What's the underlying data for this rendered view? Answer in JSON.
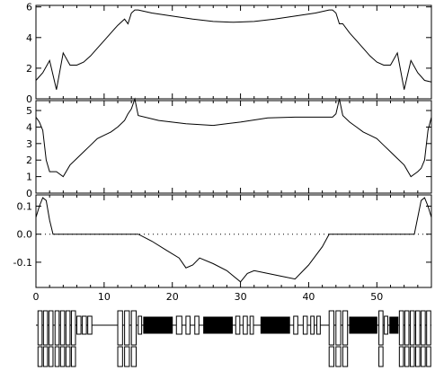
{
  "chart_data": [
    {
      "type": "line",
      "panel": "top",
      "xlabel": "",
      "ylabel": "",
      "title": "",
      "xlim": [
        0,
        58
      ],
      "ylim": [
        0,
        6.1
      ],
      "yticks": [
        0,
        2,
        4,
        6
      ],
      "series": [
        {
          "x": [
            0,
            1,
            2,
            3,
            4,
            5,
            6,
            7,
            8,
            9,
            10,
            11,
            12,
            13,
            13.5,
            14,
            14.5,
            15,
            17,
            20,
            23,
            26,
            29,
            32,
            35,
            38,
            41,
            43,
            43.5,
            44,
            44.5,
            45,
            46,
            47,
            48,
            49,
            50,
            51,
            52,
            53,
            54,
            55,
            56,
            57,
            58
          ],
          "y": [
            1.2,
            1.7,
            2.5,
            0.6,
            3.0,
            2.2,
            2.2,
            2.4,
            2.8,
            3.3,
            3.8,
            4.3,
            4.8,
            5.2,
            4.9,
            5.6,
            5.8,
            5.8,
            5.6,
            5.4,
            5.2,
            5.05,
            5.0,
            5.05,
            5.2,
            5.4,
            5.6,
            5.8,
            5.8,
            5.6,
            4.9,
            4.9,
            4.3,
            3.8,
            3.3,
            2.8,
            2.4,
            2.2,
            2.2,
            3.0,
            0.6,
            2.5,
            1.7,
            1.2,
            1.1
          ]
        }
      ]
    },
    {
      "type": "line",
      "panel": "middle",
      "xlabel": "",
      "ylabel": "",
      "title": "",
      "xlim": [
        0,
        58
      ],
      "ylim": [
        0,
        5.6
      ],
      "yticks": [
        0,
        1,
        2,
        3,
        4,
        5
      ],
      "series": [
        {
          "x": [
            0,
            0.5,
            1,
            1.5,
            2,
            3,
            4,
            5,
            6,
            7,
            8,
            9,
            10,
            11,
            12,
            13,
            13.5,
            14,
            14.5,
            15,
            18,
            22,
            26,
            30,
            34,
            38,
            42,
            43.5,
            44,
            44.5,
            45,
            46,
            47,
            48,
            49,
            50,
            51,
            52,
            53,
            54,
            55,
            56,
            56.5,
            57,
            57.5,
            58
          ],
          "y": [
            4.6,
            4.3,
            3.8,
            2.0,
            1.3,
            1.3,
            1.0,
            1.7,
            2.1,
            2.5,
            2.9,
            3.3,
            3.5,
            3.7,
            4.0,
            4.4,
            4.8,
            5.1,
            5.7,
            4.7,
            4.4,
            4.2,
            4.1,
            4.3,
            4.55,
            4.6,
            4.6,
            4.6,
            4.8,
            5.7,
            4.7,
            4.3,
            4.0,
            3.7,
            3.5,
            3.3,
            2.9,
            2.5,
            2.1,
            1.7,
            1.0,
            1.3,
            1.5,
            2.0,
            3.8,
            4.6
          ]
        }
      ]
    },
    {
      "type": "line",
      "panel": "bottom",
      "xlabel": "",
      "ylabel": "",
      "title": "",
      "xlim": [
        0,
        58
      ],
      "ylim": [
        -0.19,
        0.14
      ],
      "yticks": [
        -0.1,
        0.0,
        0.1
      ],
      "ytick_labels": [
        "-0.1",
        "0.0",
        "0.1"
      ],
      "xticks": [
        0,
        10,
        20,
        30,
        40,
        50
      ],
      "xtick_labels": [
        "0",
        "10",
        "20",
        "30",
        "40",
        "50"
      ],
      "zero_line": "dotted",
      "series": [
        {
          "x": [
            0,
            0.5,
            1,
            1.5,
            2,
            2.5,
            3,
            14,
            15,
            17,
            19,
            21,
            22,
            23,
            24,
            26,
            28,
            30,
            31,
            32,
            34,
            36,
            38,
            40,
            42,
            43,
            44,
            55,
            55.5,
            56,
            56.5,
            57,
            57.5,
            58
          ],
          "y": [
            0.06,
            0.1,
            0.13,
            0.12,
            0.05,
            0.0,
            0.0,
            0.0,
            0.0,
            -0.025,
            -0.055,
            -0.085,
            -0.12,
            -0.11,
            -0.085,
            -0.105,
            -0.13,
            -0.17,
            -0.14,
            -0.13,
            -0.14,
            -0.15,
            -0.16,
            -0.11,
            -0.045,
            0.0,
            0.0,
            0.0,
            0.0,
            0.06,
            0.12,
            0.13,
            0.1,
            0.06
          ]
        }
      ]
    }
  ],
  "lattice": {
    "boxes": [
      {
        "s": 0.3,
        "w": 0.6,
        "h": "tall",
        "fill": "white"
      },
      {
        "s": 1.1,
        "w": 0.6,
        "h": "tall",
        "fill": "white"
      },
      {
        "s": 1.9,
        "w": 0.6,
        "h": "tall",
        "fill": "white"
      },
      {
        "s": 2.8,
        "w": 0.6,
        "h": "tall",
        "fill": "white"
      },
      {
        "s": 3.6,
        "w": 0.6,
        "h": "tall",
        "fill": "white"
      },
      {
        "s": 4.4,
        "w": 0.6,
        "h": "tall",
        "fill": "white"
      },
      {
        "s": 5.2,
        "w": 0.6,
        "h": "tall",
        "fill": "white"
      },
      {
        "s": 6.0,
        "w": 0.6,
        "h": "short",
        "fill": "white"
      },
      {
        "s": 6.8,
        "w": 0.6,
        "h": "short",
        "fill": "white"
      },
      {
        "s": 7.6,
        "w": 0.6,
        "h": "short",
        "fill": "white"
      },
      {
        "s": 12.0,
        "w": 0.7,
        "h": "tall",
        "fill": "white"
      },
      {
        "s": 13.0,
        "w": 0.7,
        "h": "tall",
        "fill": "white"
      },
      {
        "s": 14.0,
        "w": 0.7,
        "h": "tall",
        "fill": "white"
      },
      {
        "s": 15.0,
        "w": 0.5,
        "h": "short",
        "fill": "white"
      },
      {
        "s": 15.8,
        "w": 4.2,
        "h": "mid",
        "fill": "black"
      },
      {
        "s": 20.6,
        "w": 0.8,
        "h": "short",
        "fill": "white"
      },
      {
        "s": 22.0,
        "w": 0.6,
        "h": "short",
        "fill": "white"
      },
      {
        "s": 23.3,
        "w": 0.6,
        "h": "short",
        "fill": "white"
      },
      {
        "s": 24.6,
        "w": 4.2,
        "h": "mid",
        "fill": "black"
      },
      {
        "s": 29.3,
        "w": 0.6,
        "h": "short",
        "fill": "white"
      },
      {
        "s": 30.4,
        "w": 0.6,
        "h": "short",
        "fill": "white"
      },
      {
        "s": 31.4,
        "w": 0.5,
        "h": "short",
        "fill": "white"
      },
      {
        "s": 33.0,
        "w": 4.2,
        "h": "mid",
        "fill": "black"
      },
      {
        "s": 37.8,
        "w": 0.6,
        "h": "short",
        "fill": "white"
      },
      {
        "s": 39.2,
        "w": 0.6,
        "h": "short",
        "fill": "white"
      },
      {
        "s": 40.3,
        "w": 0.5,
        "h": "short",
        "fill": "white"
      },
      {
        "s": 41.2,
        "w": 0.5,
        "h": "short",
        "fill": "white"
      },
      {
        "s": 43.0,
        "w": 0.7,
        "h": "tall",
        "fill": "white"
      },
      {
        "s": 44.0,
        "w": 0.7,
        "h": "tall",
        "fill": "white"
      },
      {
        "s": 45.0,
        "w": 0.7,
        "h": "tall",
        "fill": "white"
      },
      {
        "s": 46.0,
        "w": 4.0,
        "h": "mid",
        "fill": "black"
      },
      {
        "s": 50.3,
        "w": 0.6,
        "h": "tall",
        "fill": "white"
      },
      {
        "s": 51.1,
        "w": 0.5,
        "h": "short",
        "fill": "white"
      },
      {
        "s": 51.9,
        "w": 1.2,
        "h": "mid",
        "fill": "black"
      },
      {
        "s": 53.3,
        "w": 0.6,
        "h": "tall",
        "fill": "white"
      },
      {
        "s": 54.1,
        "w": 0.6,
        "h": "tall",
        "fill": "white"
      },
      {
        "s": 54.9,
        "w": 0.6,
        "h": "tall",
        "fill": "white"
      },
      {
        "s": 55.7,
        "w": 0.6,
        "h": "tall",
        "fill": "white"
      },
      {
        "s": 56.5,
        "w": 0.6,
        "h": "tall",
        "fill": "white"
      },
      {
        "s": 57.3,
        "w": 0.6,
        "h": "tall",
        "fill": "white"
      }
    ]
  }
}
